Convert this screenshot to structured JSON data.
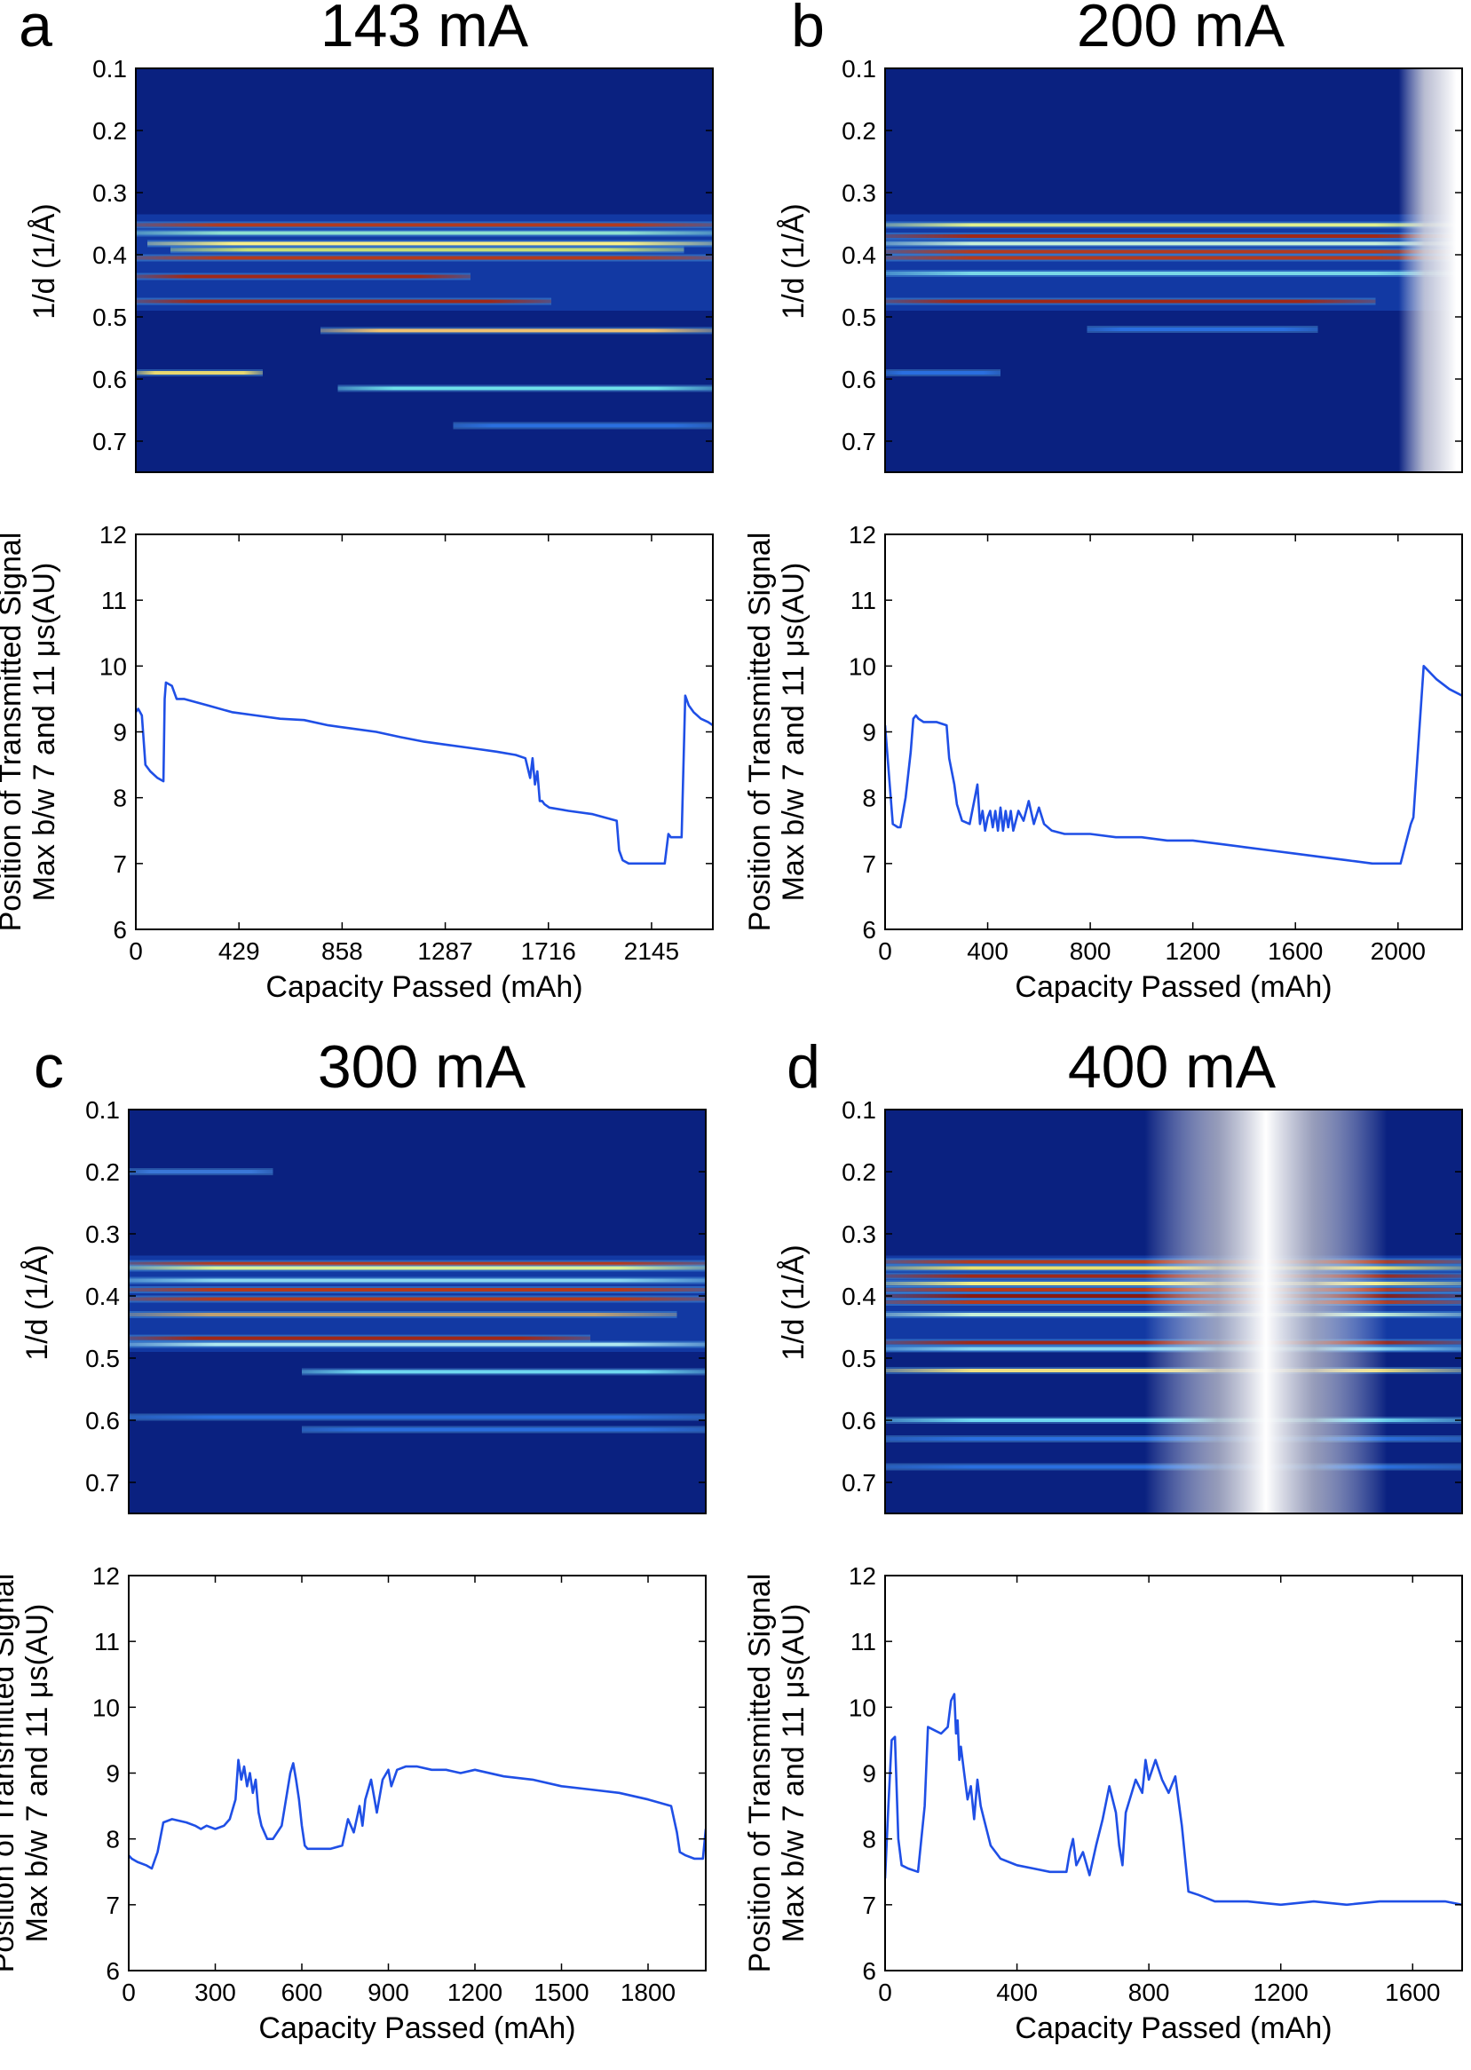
{
  "chart_data": [
    {
      "panel": "a",
      "title": "143 mA",
      "type": "heatmap",
      "ylabel": "1/d (1/Å)",
      "ylim": [
        0.1,
        0.75
      ],
      "yticks": [
        "0.1",
        "0.2",
        "0.3",
        "0.4",
        "0.5",
        "0.6",
        "0.7"
      ],
      "bands": [
        {
          "d": 0.352,
          "start": 0.0,
          "end": 1.0,
          "color": "#b33a1e"
        },
        {
          "d": 0.365,
          "start": 0.0,
          "end": 1.0,
          "color": "#8fe0d0"
        },
        {
          "d": 0.382,
          "start": 0.02,
          "end": 1.0,
          "color": "#f7f08a"
        },
        {
          "d": 0.392,
          "start": 0.06,
          "end": 0.95,
          "color": "#c4e07a"
        },
        {
          "d": 0.405,
          "start": 0.0,
          "end": 1.0,
          "color": "#b33a1e"
        },
        {
          "d": 0.435,
          "start": 0.0,
          "end": 0.58,
          "color": "#a02818"
        },
        {
          "d": 0.475,
          "start": 0.0,
          "end": 0.72,
          "color": "#a02818"
        },
        {
          "d": 0.522,
          "start": 0.32,
          "end": 1.0,
          "color": "#f0c070"
        },
        {
          "d": 0.59,
          "start": 0.0,
          "end": 0.22,
          "color": "#e8d870"
        },
        {
          "d": 0.615,
          "start": 0.35,
          "end": 1.0,
          "color": "#6fe0e8"
        },
        {
          "d": 0.675,
          "start": 0.55,
          "end": 1.0,
          "color": "#2a6fe0"
        }
      ],
      "gaps": [],
      "line": {
        "type": "line",
        "xlabel": "Capacity Passed (mAh)",
        "ylabel_lines": [
          "Position of Transmitted Signal",
          "Max b/w 7 and 11 μs(AU)"
        ],
        "xlim": [
          0,
          2400
        ],
        "ylim": [
          6,
          12
        ],
        "xticks": [
          0,
          429,
          858,
          1287,
          1716,
          2145
        ],
        "yticks": [
          6,
          7,
          8,
          9,
          10,
          11,
          12
        ],
        "x": [
          0,
          10,
          25,
          40,
          60,
          90,
          115,
          120,
          125,
          150,
          170,
          200,
          300,
          400,
          500,
          600,
          700,
          800,
          900,
          1000,
          1100,
          1200,
          1300,
          1400,
          1500,
          1580,
          1620,
          1640,
          1650,
          1660,
          1670,
          1680,
          1690,
          1700,
          1720,
          1800,
          1900,
          2000,
          2010,
          2025,
          2050,
          2100,
          2150,
          2200,
          2215,
          2225,
          2270,
          2285,
          2300,
          2320,
          2350,
          2380,
          2400
        ],
        "y": [
          9.3,
          9.35,
          9.25,
          8.5,
          8.4,
          8.3,
          8.25,
          9.5,
          9.75,
          9.7,
          9.5,
          9.5,
          9.4,
          9.3,
          9.25,
          9.2,
          9.18,
          9.1,
          9.05,
          9.0,
          8.92,
          8.85,
          8.8,
          8.75,
          8.7,
          8.65,
          8.6,
          8.3,
          8.6,
          8.2,
          8.4,
          7.95,
          7.95,
          7.9,
          7.85,
          7.8,
          7.75,
          7.65,
          7.2,
          7.05,
          7.0,
          7.0,
          7.0,
          7.0,
          7.45,
          7.4,
          7.4,
          9.55,
          9.4,
          9.3,
          9.2,
          9.15,
          9.1
        ]
      }
    },
    {
      "panel": "b",
      "title": "200 mA",
      "type": "heatmap",
      "ylabel": "1/d (1/Å)",
      "ylim": [
        0.1,
        0.75
      ],
      "yticks": [
        "0.1",
        "0.2",
        "0.3",
        "0.4",
        "0.5",
        "0.6",
        "0.7"
      ],
      "bands": [
        {
          "d": 0.352,
          "start": 0.0,
          "end": 1.0,
          "color": "#e0f090"
        },
        {
          "d": 0.37,
          "start": 0.0,
          "end": 1.0,
          "color": "#a02818"
        },
        {
          "d": 0.382,
          "start": 0.0,
          "end": 1.0,
          "color": "#c8f0d8"
        },
        {
          "d": 0.395,
          "start": 0.0,
          "end": 1.0,
          "color": "#b33a1e"
        },
        {
          "d": 0.405,
          "start": 0.0,
          "end": 1.0,
          "color": "#b33a1e"
        },
        {
          "d": 0.43,
          "start": 0.0,
          "end": 1.0,
          "color": "#7ad8e8"
        },
        {
          "d": 0.475,
          "start": 0.0,
          "end": 0.85,
          "color": "#a02818"
        },
        {
          "d": 0.52,
          "start": 0.35,
          "end": 0.75,
          "color": "#2a6fe0"
        },
        {
          "d": 0.59,
          "start": 0.0,
          "end": 0.2,
          "color": "#2a6fe0"
        }
      ],
      "gaps": [
        {
          "center": 0.99,
          "half_width": 0.05,
          "solid_to_end": true
        }
      ],
      "line": {
        "type": "line",
        "xlabel": "Capacity Passed (mAh)",
        "ylabel_lines": [
          "Position of Transmitted Signal",
          "Max b/w 7 and 11 μs(AU)"
        ],
        "xlim": [
          0,
          2250
        ],
        "ylim": [
          6,
          12
        ],
        "xticks": [
          0,
          400,
          800,
          1200,
          1600,
          2000
        ],
        "yticks": [
          6,
          7,
          8,
          9,
          10,
          11,
          12
        ],
        "x": [
          0,
          10,
          30,
          50,
          60,
          80,
          100,
          110,
          120,
          130,
          150,
          200,
          240,
          250,
          260,
          270,
          280,
          300,
          330,
          350,
          360,
          370,
          380,
          390,
          400,
          410,
          420,
          430,
          440,
          450,
          460,
          470,
          480,
          490,
          500,
          520,
          540,
          560,
          580,
          600,
          620,
          650,
          700,
          800,
          900,
          1000,
          1100,
          1200,
          1300,
          1400,
          1500,
          1600,
          1700,
          1800,
          1900,
          1950,
          2000,
          2010,
          2030,
          2050,
          2060,
          2100,
          2150,
          2200,
          2250
        ],
        "y": [
          9.1,
          8.6,
          7.6,
          7.55,
          7.55,
          8.0,
          8.7,
          9.2,
          9.25,
          9.2,
          9.15,
          9.15,
          9.1,
          8.6,
          8.4,
          8.2,
          7.9,
          7.65,
          7.6,
          8.0,
          8.2,
          7.6,
          7.8,
          7.5,
          7.7,
          7.8,
          7.55,
          7.8,
          7.5,
          7.85,
          7.5,
          7.8,
          7.55,
          7.8,
          7.5,
          7.8,
          7.65,
          7.95,
          7.6,
          7.85,
          7.6,
          7.5,
          7.45,
          7.45,
          7.4,
          7.4,
          7.35,
          7.35,
          7.3,
          7.25,
          7.2,
          7.15,
          7.1,
          7.05,
          7.0,
          7.0,
          7.0,
          7.0,
          7.3,
          7.6,
          7.7,
          10.0,
          9.8,
          9.65,
          9.55
        ]
      }
    },
    {
      "panel": "c",
      "title": "300 mA",
      "type": "heatmap",
      "ylabel": "1/d (1/Å)",
      "ylim": [
        0.1,
        0.75
      ],
      "yticks": [
        "0.1",
        "0.2",
        "0.3",
        "0.4",
        "0.5",
        "0.6",
        "0.7"
      ],
      "bands": [
        {
          "d": 0.2,
          "start": 0.0,
          "end": 0.25,
          "color": "#3a78d8"
        },
        {
          "d": 0.348,
          "start": 0.0,
          "end": 1.0,
          "color": "#b33a1e"
        },
        {
          "d": 0.355,
          "start": 0.0,
          "end": 1.0,
          "color": "#d8f098"
        },
        {
          "d": 0.375,
          "start": 0.0,
          "end": 1.0,
          "color": "#8ad8f0"
        },
        {
          "d": 0.39,
          "start": 0.0,
          "end": 1.0,
          "color": "#b33a1e"
        },
        {
          "d": 0.405,
          "start": 0.0,
          "end": 1.0,
          "color": "#b33a1e"
        },
        {
          "d": 0.43,
          "start": 0.0,
          "end": 0.95,
          "color": "#c0a070"
        },
        {
          "d": 0.468,
          "start": 0.0,
          "end": 0.8,
          "color": "#a02818"
        },
        {
          "d": 0.478,
          "start": 0.0,
          "end": 1.0,
          "color": "#b0e8f0"
        },
        {
          "d": 0.522,
          "start": 0.3,
          "end": 1.0,
          "color": "#6fd8f0"
        },
        {
          "d": 0.595,
          "start": 0.0,
          "end": 1.0,
          "color": "#2a6fe0"
        },
        {
          "d": 0.615,
          "start": 0.3,
          "end": 1.0,
          "color": "#2a6fe0"
        }
      ],
      "gaps": [],
      "line": {
        "type": "line",
        "xlabel": "Capacity Passed (mAh)",
        "ylabel_lines": [
          "Position of Transmitted Signal",
          "Max b/w 7 and 11 μs(AU)"
        ],
        "xlim": [
          0,
          2000
        ],
        "ylim": [
          6,
          12
        ],
        "xticks": [
          0,
          300,
          600,
          900,
          1200,
          1500,
          1800
        ],
        "yticks": [
          6,
          7,
          8,
          9,
          10,
          11,
          12
        ],
        "x": [
          0,
          10,
          30,
          60,
          80,
          100,
          120,
          150,
          200,
          230,
          250,
          270,
          300,
          330,
          350,
          370,
          380,
          390,
          400,
          410,
          420,
          430,
          440,
          450,
          460,
          480,
          500,
          530,
          560,
          570,
          580,
          590,
          600,
          610,
          620,
          650,
          700,
          740,
          760,
          780,
          800,
          810,
          820,
          840,
          860,
          880,
          900,
          910,
          930,
          960,
          1000,
          1050,
          1100,
          1150,
          1200,
          1300,
          1400,
          1500,
          1600,
          1700,
          1800,
          1880,
          1900,
          1910,
          1930,
          1960,
          1990,
          2000
        ],
        "y": [
          7.75,
          7.7,
          7.65,
          7.6,
          7.55,
          7.8,
          8.25,
          8.3,
          8.25,
          8.2,
          8.15,
          8.2,
          8.15,
          8.2,
          8.3,
          8.6,
          9.2,
          8.9,
          9.1,
          8.8,
          9.0,
          8.7,
          8.9,
          8.4,
          8.2,
          8.0,
          8.0,
          8.2,
          9.0,
          9.15,
          8.9,
          8.6,
          8.2,
          7.9,
          7.85,
          7.85,
          7.85,
          7.9,
          8.3,
          8.1,
          8.5,
          8.2,
          8.6,
          8.9,
          8.4,
          8.9,
          9.05,
          8.8,
          9.05,
          9.1,
          9.1,
          9.05,
          9.05,
          9.0,
          9.05,
          8.95,
          8.9,
          8.8,
          8.75,
          8.7,
          8.6,
          8.5,
          8.1,
          7.8,
          7.75,
          7.7,
          7.7,
          8.15
        ]
      }
    },
    {
      "panel": "d",
      "title": "400 mA",
      "type": "heatmap",
      "ylabel": "1/d (1/Å)",
      "ylim": [
        0.1,
        0.75
      ],
      "yticks": [
        "0.1",
        "0.2",
        "0.3",
        "0.4",
        "0.5",
        "0.6",
        "0.7"
      ],
      "bands": [
        {
          "d": 0.345,
          "start": 0.0,
          "end": 1.0,
          "color": "#b33a1e"
        },
        {
          "d": 0.355,
          "start": 0.0,
          "end": 1.0,
          "color": "#e8e070"
        },
        {
          "d": 0.368,
          "start": 0.0,
          "end": 1.0,
          "color": "#a02818"
        },
        {
          "d": 0.38,
          "start": 0.0,
          "end": 1.0,
          "color": "#f0f08a"
        },
        {
          "d": 0.39,
          "start": 0.0,
          "end": 1.0,
          "color": "#b33a1e"
        },
        {
          "d": 0.4,
          "start": 0.0,
          "end": 1.0,
          "color": "#8a1a10"
        },
        {
          "d": 0.41,
          "start": 0.0,
          "end": 1.0,
          "color": "#b33a1e"
        },
        {
          "d": 0.43,
          "start": 0.0,
          "end": 1.0,
          "color": "#c8f0d8"
        },
        {
          "d": 0.475,
          "start": 0.0,
          "end": 1.0,
          "color": "#a02818"
        },
        {
          "d": 0.485,
          "start": 0.0,
          "end": 1.0,
          "color": "#8ad8f0"
        },
        {
          "d": 0.52,
          "start": 0.0,
          "end": 1.0,
          "color": "#f0e080"
        },
        {
          "d": 0.6,
          "start": 0.0,
          "end": 1.0,
          "color": "#6fd8f0"
        },
        {
          "d": 0.63,
          "start": 0.0,
          "end": 1.0,
          "color": "#2a6fe0"
        },
        {
          "d": 0.675,
          "start": 0.0,
          "end": 1.0,
          "color": "#2a6fe0"
        }
      ],
      "gaps": [
        {
          "center": 0.66,
          "half_width": 0.21,
          "solid_to_end": false
        }
      ],
      "line": {
        "type": "line",
        "xlabel": "Capacity Passed (mAh)",
        "ylabel_lines": [
          "Position of Transmitted Signal",
          "Max b/w 7 and 11 μs(AU)"
        ],
        "xlim": [
          0,
          1750
        ],
        "ylim": [
          6,
          12
        ],
        "xticks": [
          0,
          400,
          800,
          1200,
          1600
        ],
        "yticks": [
          6,
          7,
          8,
          9,
          10,
          11,
          12
        ],
        "x": [
          0,
          10,
          20,
          30,
          40,
          50,
          70,
          100,
          120,
          130,
          150,
          170,
          190,
          200,
          210,
          215,
          220,
          225,
          230,
          240,
          250,
          260,
          270,
          280,
          290,
          300,
          320,
          350,
          400,
          450,
          500,
          550,
          560,
          570,
          580,
          600,
          620,
          640,
          660,
          680,
          700,
          710,
          720,
          730,
          760,
          780,
          790,
          800,
          820,
          840,
          860,
          880,
          900,
          920,
          950,
          1000,
          1100,
          1200,
          1300,
          1400,
          1500,
          1600,
          1700,
          1750
        ],
        "y": [
          7.4,
          8.5,
          9.5,
          9.55,
          8.0,
          7.6,
          7.55,
          7.5,
          8.5,
          9.7,
          9.65,
          9.6,
          9.7,
          10.1,
          10.2,
          9.6,
          9.8,
          9.2,
          9.4,
          9.0,
          8.6,
          8.8,
          8.3,
          8.9,
          8.5,
          8.3,
          7.9,
          7.7,
          7.6,
          7.55,
          7.5,
          7.5,
          7.8,
          8.0,
          7.6,
          7.8,
          7.45,
          7.9,
          8.3,
          8.8,
          8.4,
          7.9,
          7.6,
          8.4,
          8.9,
          8.7,
          9.2,
          8.9,
          9.2,
          8.9,
          8.7,
          8.95,
          8.2,
          7.2,
          7.15,
          7.05,
          7.05,
          7.0,
          7.05,
          7.0,
          7.05,
          7.05,
          7.05,
          7.0
        ]
      }
    }
  ]
}
